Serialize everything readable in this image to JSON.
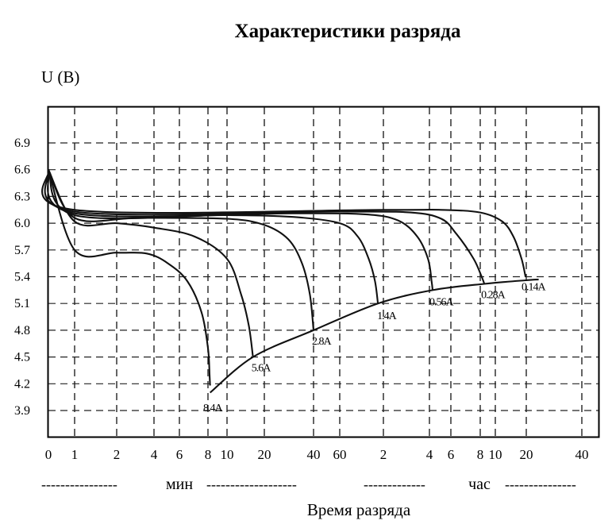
{
  "chart_data": {
    "type": "line",
    "title": "Характеристики разряда",
    "ylabel": "U (В)",
    "xlabel": "Время разряда",
    "x_unit_labels": [
      {
        "dashes_left": "----------------",
        "unit": "мин",
        "dashes_right": "-------------------"
      },
      {
        "dashes_left": "-------------",
        "unit": "час",
        "dashes_right": "---------------"
      }
    ],
    "y_ticks": [
      "6.9",
      "6.6",
      "6.3",
      "6.0",
      "5.7",
      "5.4",
      "5.1",
      "4.8",
      "4.5",
      "4.2",
      "3.9"
    ],
    "ylim": [
      3.6,
      7.2
    ],
    "x_ticks": [
      "0",
      "1",
      "2",
      "4",
      "6",
      "8",
      "10",
      "20",
      "40",
      "60",
      "2",
      "4",
      "6",
      "8",
      "10",
      "20",
      "40"
    ],
    "x_scale": "log (minutes, 0.4 min to 48 h); minutes then hours",
    "grid": true,
    "series": [
      {
        "name": "8.4A",
        "points": [
          [
            0.45,
            6.6
          ],
          [
            1,
            5.7
          ],
          [
            2,
            5.67
          ],
          [
            3.5,
            5.66
          ],
          [
            5,
            5.55
          ],
          [
            6.5,
            5.35
          ],
          [
            7.5,
            5.0
          ],
          [
            8,
            4.6
          ],
          [
            8.15,
            4.3
          ],
          [
            8.2,
            4.18
          ]
        ]
      },
      {
        "name": "5.6A",
        "points": [
          [
            0.45,
            6.6
          ],
          [
            1,
            6.02
          ],
          [
            2,
            6.0
          ],
          [
            4,
            5.95
          ],
          [
            7,
            5.85
          ],
          [
            10,
            5.6
          ],
          [
            13,
            5.2
          ],
          [
            15,
            4.85
          ],
          [
            16.2,
            4.5
          ]
        ]
      },
      {
        "name": "2.8A",
        "points": [
          [
            0.45,
            6.6
          ],
          [
            1,
            6.06
          ],
          [
            3,
            6.06
          ],
          [
            10,
            6.05
          ],
          [
            20,
            5.98
          ],
          [
            28,
            5.82
          ],
          [
            34,
            5.55
          ],
          [
            38,
            5.2
          ],
          [
            40,
            4.8
          ]
        ]
      },
      {
        "name": "1.4A",
        "points": [
          [
            0.45,
            6.6
          ],
          [
            1,
            6.09
          ],
          [
            10,
            6.09
          ],
          [
            30,
            6.07
          ],
          [
            60,
            6.0
          ],
          [
            80,
            5.85
          ],
          [
            95,
            5.6
          ],
          [
            105,
            5.35
          ],
          [
            110,
            5.1
          ]
        ]
      },
      {
        "name": "0.56A",
        "points": [
          [
            0.45,
            6.6
          ],
          [
            1,
            6.11
          ],
          [
            30,
            6.11
          ],
          [
            90,
            6.1
          ],
          [
            150,
            6.03
          ],
          [
            200,
            5.85
          ],
          [
            235,
            5.6
          ],
          [
            250,
            5.35
          ],
          [
            255,
            5.25
          ]
        ]
      },
      {
        "name": "0.28A",
        "points": [
          [
            0.45,
            6.6
          ],
          [
            1,
            6.13
          ],
          [
            60,
            6.13
          ],
          [
            180,
            6.12
          ],
          [
            300,
            6.05
          ],
          [
            380,
            5.88
          ],
          [
            450,
            5.6
          ],
          [
            490,
            5.4
          ],
          [
            510,
            5.32
          ]
        ]
      },
      {
        "name": "0.14A",
        "points": [
          [
            0.45,
            6.6
          ],
          [
            1,
            6.15
          ],
          [
            120,
            6.15
          ],
          [
            300,
            6.15
          ],
          [
            480,
            6.12
          ],
          [
            700,
            6.02
          ],
          [
            900,
            5.85
          ],
          [
            1080,
            5.6
          ],
          [
            1180,
            5.4
          ]
        ]
      },
      {
        "name": "end-of-discharge envelope",
        "points": [
          [
            8.2,
            4.1
          ],
          [
            16.2,
            4.5
          ],
          [
            40,
            4.8
          ],
          [
            110,
            5.1
          ],
          [
            255,
            5.25
          ],
          [
            510,
            5.32
          ],
          [
            1180,
            5.36
          ],
          [
            1400,
            5.37
          ]
        ]
      }
    ],
    "annotations": [
      "8.4A",
      "5.6A",
      "2.8A",
      "1.4A",
      "0.56A",
      "0.28A",
      "0.14A"
    ]
  }
}
